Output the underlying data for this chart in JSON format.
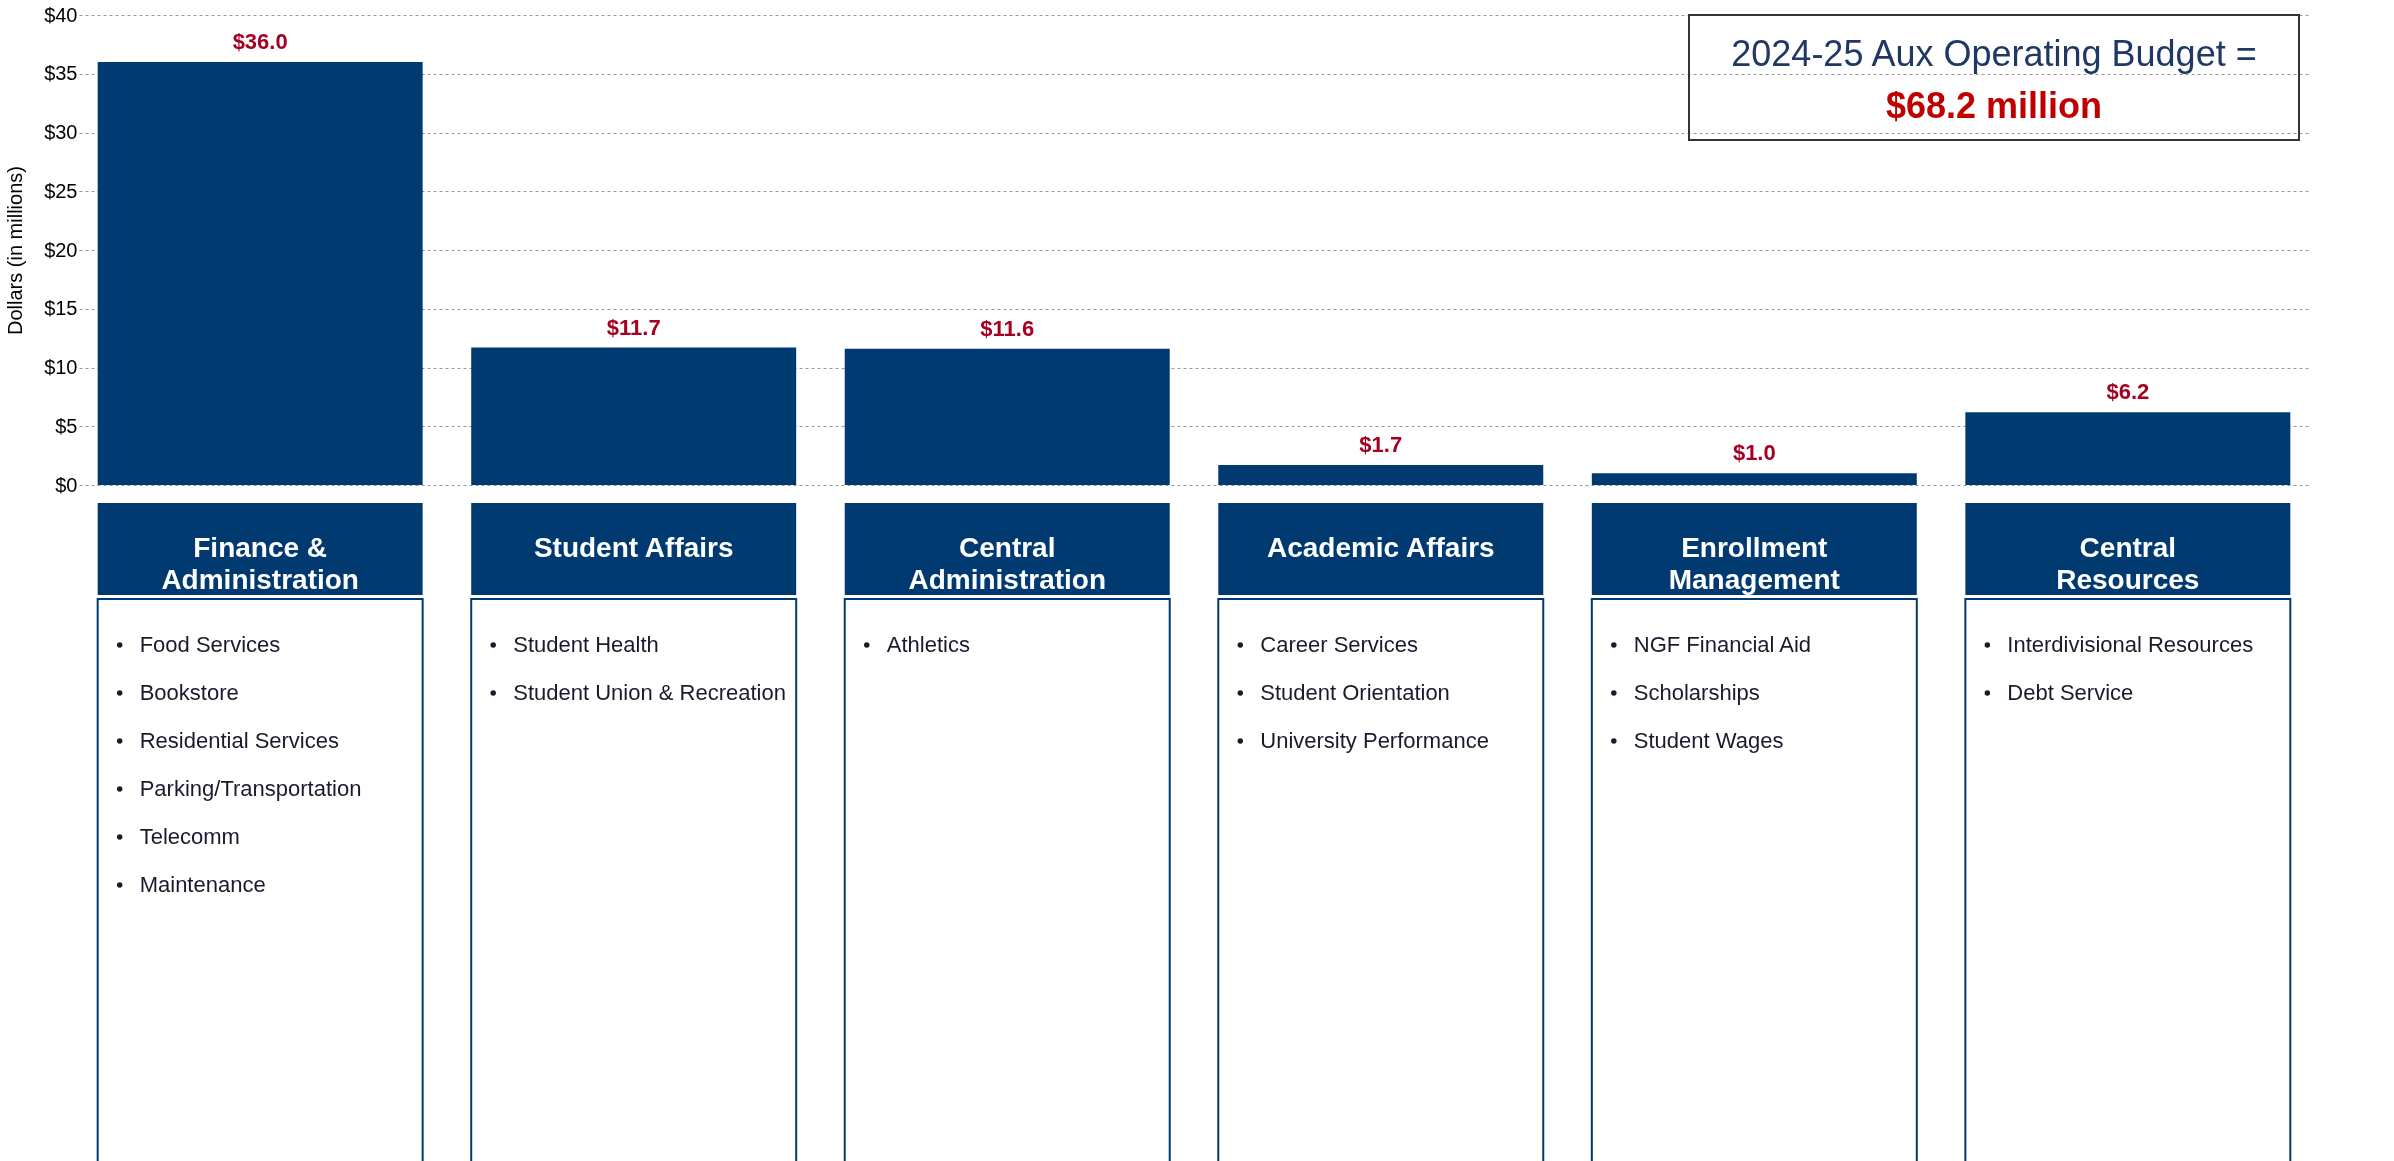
{
  "chart_data": {
    "type": "bar",
    "title": "2024-25 Aux Operating Budget =",
    "subtitle": "$68.2 million",
    "ylabel": "Dollars (in millions)",
    "categories": [
      "Finance & Administration",
      "Student Affairs",
      "Central Administration",
      "Academic Affairs",
      "Enrollment Management",
      "Central Resources"
    ],
    "values": [
      36.0,
      11.7,
      11.6,
      1.7,
      1.0,
      6.2
    ],
    "color": "#003a70",
    "value_labels": [
      "$36.0",
      "$11.7",
      "$11.6",
      "$1.7",
      "$1.0",
      "$6.2"
    ],
    "ylim": [
      0,
      40
    ],
    "yticks": [
      {
        "value": 0,
        "label": "$0"
      },
      {
        "value": 5,
        "label": "$5"
      },
      {
        "value": 10,
        "label": "$10"
      },
      {
        "value": 15,
        "label": "$15"
      },
      {
        "value": 20,
        "label": "$20"
      },
      {
        "value": 25,
        "label": "$25"
      },
      {
        "value": 30,
        "label": "$30"
      },
      {
        "value": 35,
        "label": "$35"
      },
      {
        "value": 40,
        "label": "$40"
      }
    ],
    "grid": "y",
    "annotations": [
      "Food Services\nBookstore\nResidential Services\nParking/Transportation\nTelecomm\nMaintenance",
      "Student Health\nStudent Union & Recreation",
      "Athletics",
      "Career Services\nStudent Orientation\nUniversity Performance",
      "NGF Financial Aid\nScholarships\nStudent Wages",
      "Interdivisional Resources\nDebt Service"
    ]
  }
}
